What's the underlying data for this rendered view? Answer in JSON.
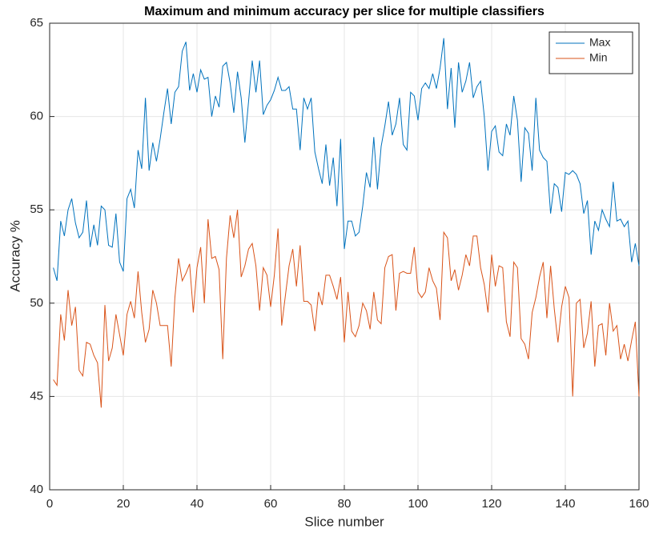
{
  "chart_data": {
    "type": "line",
    "title": "Maximum and minimum accuracy per slice for multiple classifiers",
    "x_label": "Slice number",
    "y_label": "Accuracy %",
    "x": [
      1,
      2,
      3,
      4,
      5,
      6,
      7,
      8,
      9,
      10,
      11,
      12,
      13,
      14,
      15,
      16,
      17,
      18,
      19,
      20,
      21,
      22,
      23,
      24,
      25,
      26,
      27,
      28,
      29,
      30,
      31,
      32,
      33,
      34,
      35,
      36,
      37,
      38,
      39,
      40,
      41,
      42,
      43,
      44,
      45,
      46,
      47,
      48,
      49,
      50,
      51,
      52,
      53,
      54,
      55,
      56,
      57,
      58,
      59,
      60,
      61,
      62,
      63,
      64,
      65,
      66,
      67,
      68,
      69,
      70,
      71,
      72,
      73,
      74,
      75,
      76,
      77,
      78,
      79,
      80,
      81,
      82,
      83,
      84,
      85,
      86,
      87,
      88,
      89,
      90,
      91,
      92,
      93,
      94,
      95,
      96,
      97,
      98,
      99,
      100,
      101,
      102,
      103,
      104,
      105,
      106,
      107,
      108,
      109,
      110,
      111,
      112,
      113,
      114,
      115,
      116,
      117,
      118,
      119,
      120,
      121,
      122,
      123,
      124,
      125,
      126,
      127,
      128,
      129,
      130,
      131,
      132,
      133,
      134,
      135,
      136,
      137,
      138,
      139,
      140,
      141,
      142,
      143,
      144,
      145,
      146,
      147,
      148,
      149,
      150,
      151,
      152,
      153,
      154,
      155,
      156,
      157,
      158,
      159,
      160
    ],
    "series": [
      {
        "name": "Max",
        "color": "#0072bd",
        "values": [
          51.9,
          51.2,
          54.4,
          53.6,
          55.0,
          55.6,
          54.3,
          53.5,
          53.8,
          55.5,
          53.0,
          54.2,
          53.1,
          55.2,
          55.0,
          53.1,
          53.0,
          54.8,
          52.2,
          51.7,
          55.6,
          56.1,
          55.1,
          58.2,
          57.2,
          61.0,
          57.1,
          58.6,
          57.6,
          58.8,
          60.2,
          61.5,
          59.6,
          61.3,
          61.6,
          63.5,
          64.0,
          61.4,
          62.3,
          61.3,
          62.5,
          62.0,
          62.1,
          60.0,
          61.1,
          60.5,
          62.7,
          62.9,
          61.8,
          60.2,
          62.4,
          61.0,
          58.6,
          60.8,
          63.0,
          61.3,
          63.0,
          60.1,
          60.6,
          60.9,
          61.4,
          62.1,
          61.4,
          61.4,
          61.6,
          60.4,
          60.4,
          58.2,
          61.0,
          60.4,
          61.0,
          58.1,
          57.2,
          56.4,
          58.5,
          56.3,
          57.8,
          55.2,
          58.8,
          52.9,
          54.4,
          54.4,
          53.6,
          53.8,
          55.2,
          57.0,
          56.2,
          58.9,
          56.1,
          58.4,
          59.5,
          60.8,
          59.0,
          59.6,
          61.0,
          58.5,
          58.2,
          61.3,
          61.1,
          59.8,
          61.5,
          61.8,
          61.5,
          62.3,
          61.5,
          62.6,
          64.2,
          60.4,
          62.6,
          59.4,
          62.9,
          61.3,
          61.9,
          62.9,
          61.0,
          61.6,
          61.9,
          60.0,
          57.1,
          59.2,
          59.5,
          58.1,
          57.9,
          59.6,
          59.0,
          61.1,
          59.8,
          56.5,
          59.4,
          59.1,
          57.1,
          61.0,
          58.2,
          57.8,
          57.6,
          54.8,
          56.4,
          56.2,
          54.9,
          57.0,
          56.9,
          57.1,
          56.9,
          56.4,
          54.8,
          55.5,
          52.6,
          54.4,
          53.9,
          55.0,
          54.5,
          54.1,
          56.5,
          54.4,
          54.5,
          54.1,
          54.4,
          52.2,
          53.2,
          52.0
        ]
      },
      {
        "name": "Min",
        "color": "#d95319",
        "values": [
          45.9,
          45.6,
          49.4,
          48.0,
          50.7,
          48.8,
          49.8,
          46.4,
          46.1,
          47.9,
          47.8,
          47.2,
          46.8,
          44.4,
          49.9,
          46.9,
          47.6,
          49.4,
          48.3,
          47.2,
          49.4,
          50.1,
          49.2,
          51.7,
          49.5,
          47.9,
          48.6,
          50.7,
          50.0,
          48.8,
          48.8,
          48.8,
          46.6,
          50.3,
          52.4,
          51.2,
          51.6,
          52.1,
          49.5,
          51.9,
          53.0,
          50.0,
          54.5,
          52.4,
          52.5,
          51.8,
          47.0,
          52.4,
          54.7,
          53.5,
          55.0,
          51.4,
          52.0,
          52.9,
          53.2,
          52.0,
          49.6,
          51.9,
          51.5,
          49.8,
          51.5,
          54.0,
          48.8,
          50.4,
          52.0,
          52.9,
          50.9,
          53.1,
          50.1,
          50.1,
          49.9,
          48.5,
          50.6,
          49.9,
          51.5,
          51.5,
          50.9,
          50.2,
          51.4,
          47.9,
          50.6,
          48.5,
          48.2,
          48.8,
          50.0,
          49.6,
          48.6,
          50.6,
          49.1,
          48.9,
          51.9,
          52.5,
          52.6,
          49.6,
          51.6,
          51.7,
          51.6,
          51.6,
          53.0,
          50.6,
          50.3,
          50.6,
          51.9,
          51.2,
          50.8,
          49.1,
          53.8,
          53.5,
          51.2,
          51.8,
          50.7,
          51.5,
          52.6,
          52.0,
          53.6,
          53.6,
          51.9,
          51.0,
          49.5,
          52.6,
          50.9,
          52.0,
          51.9,
          49.0,
          48.2,
          52.2,
          51.9,
          48.1,
          47.8,
          47.0,
          49.5,
          50.3,
          51.4,
          52.2,
          49.2,
          52.0,
          49.7,
          47.9,
          49.8,
          50.9,
          50.3,
          45.0,
          50.0,
          50.2,
          47.6,
          48.4,
          50.1,
          46.6,
          48.8,
          48.9,
          47.2,
          50.0,
          48.5,
          48.8,
          47.0,
          47.8,
          46.9,
          48.0,
          49.0,
          45.0
        ]
      }
    ],
    "xlim": [
      0,
      160
    ],
    "xticks": [
      0,
      20,
      40,
      60,
      80,
      100,
      120,
      140,
      160
    ],
    "ylim": [
      40,
      65
    ],
    "yticks": [
      40,
      45,
      50,
      55,
      60,
      65
    ],
    "grid": true,
    "legend": "top-right"
  }
}
